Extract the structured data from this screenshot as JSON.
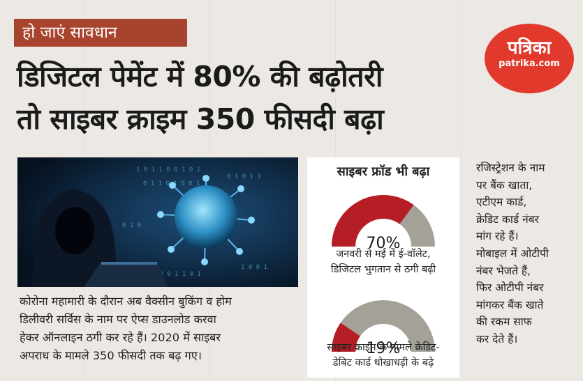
{
  "kicker": "हो जाएं सावधान",
  "headline": {
    "line1": "डिजिटल पेमेंट में 80% की बढ़ोतरी",
    "line2": "तो साइबर क्राइम 350 फीसदी बढ़ा"
  },
  "logo": {
    "name": "पत्रिका",
    "url": "patrika.com"
  },
  "caption_lines": [
    "कोरोना महामारी के दौरान अब वैक्सीन बुकिंग व होम",
    "डिलीवरी सर्विस के नाम पर ऐप्स डाउनलोड करवा",
    "हेकर ऑनलाइन ठगी कर रहे हैं। 2020 में साइबर",
    "अपराध के मामले 350 फीसदी तक बढ़ गए।"
  ],
  "panel": {
    "title": "साइबर फ्रॉड भी बढ़ा",
    "gauges": [
      {
        "value": 70,
        "label": "70%",
        "caption_lines": [
          "जनवरी से मई में ई-वॉलेट,",
          "डिजिटल भुगतान से ठगी बढ़ी"
        ]
      },
      {
        "value": 19,
        "label": "19%",
        "caption_lines": [
          "साइबर क्राइम के मामले क्रेडिट-",
          "डेबिट कार्ड धोखाधड़ी के बढ़े"
        ]
      }
    ]
  },
  "sidebar_lines": [
    "रजिस्ट्रेशन के नाम",
    "पर बैंक खाता,",
    "एटीएम कार्ड,",
    "क्रेडिट कार्ड नंबर",
    "मांग रहे हैं।",
    "मोबाइल में ओटीपी",
    "नंबर भेजते हैं,",
    "फिर ओटीपी नंबर",
    "मांगकर बैंक खाते",
    "की रकम साफ",
    "कर देते हैं।"
  ],
  "colors": {
    "gauge_fill": "#b51e25",
    "gauge_track": "#a4a298",
    "kicker_bg": "#a8432d",
    "logo_bg": "#e2392d"
  }
}
